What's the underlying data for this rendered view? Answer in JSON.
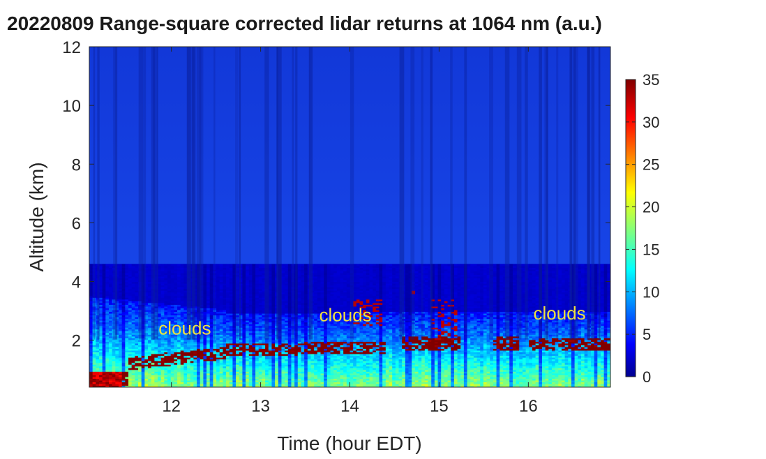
{
  "chart_data": {
    "type": "heatmap",
    "title": "20220809  Range-square corrected lidar returns at 1064 nm (a.u.)",
    "xlabel": "Time (hour EDT)",
    "ylabel": "Altitude (km)",
    "xlim": [
      11.08,
      16.92
    ],
    "ylim": [
      0.4,
      12
    ],
    "xticks": [
      "12",
      "13",
      "14",
      "15",
      "16"
    ],
    "yticks": [
      "2",
      "4",
      "6",
      "8",
      "10",
      "12"
    ],
    "colorbar": {
      "range": [
        0,
        35
      ],
      "ticks": [
        "0",
        "5",
        "10",
        "15",
        "20",
        "25",
        "30",
        "35"
      ],
      "colormap": "jet"
    },
    "annotations": [
      {
        "text": "clouds",
        "x": 12.15,
        "y": 2.2
      },
      {
        "text": "clouds",
        "x": 13.95,
        "y": 2.65
      },
      {
        "text": "clouds",
        "x": 16.35,
        "y": 2.7
      }
    ],
    "grid": false
  }
}
